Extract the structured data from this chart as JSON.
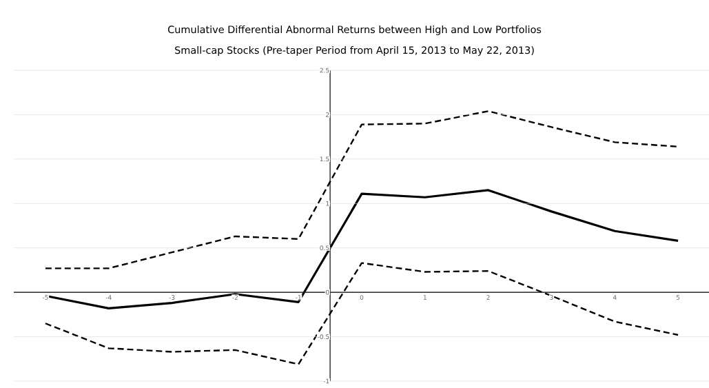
{
  "chart_data": {
    "type": "line",
    "title": "Cumulative Differential Abnormal Returns between High and Low Portfolios",
    "subtitle": "Small-cap Stocks (Pre-taper Period from April 15, 2013 to May 22, 2013)",
    "categories": [
      "-5",
      "-4",
      "-3",
      "-2",
      "-1",
      "0",
      "1",
      "2",
      "3",
      "4",
      "5"
    ],
    "series": [
      {
        "color": "#000000",
        "line_style": "dashed",
        "values": [
          0.27,
          0.27,
          0.45,
          0.63,
          0.6,
          1.89,
          1.9,
          2.04,
          1.86,
          1.69,
          1.64
        ]
      },
      {
        "color": "#000000",
        "line_style": "solid",
        "values": [
          -0.04,
          -0.18,
          -0.12,
          -0.02,
          -0.11,
          1.11,
          1.07,
          1.15,
          0.91,
          0.69,
          0.58
        ]
      },
      {
        "color": "#000000",
        "line_style": "dashed",
        "values": [
          -0.35,
          -0.63,
          -0.67,
          -0.65,
          -0.81,
          0.33,
          0.23,
          0.24,
          -0.04,
          -0.33,
          -0.48
        ]
      }
    ],
    "ylim": [
      -1,
      2.5
    ],
    "yticks": [
      -1,
      -0.5,
      0,
      0.5,
      1,
      1.5,
      2,
      2.5
    ],
    "grid": "y",
    "marker": "none",
    "legend": false
  }
}
